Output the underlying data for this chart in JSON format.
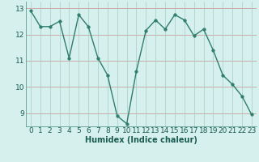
{
  "x": [
    0,
    1,
    2,
    3,
    4,
    5,
    6,
    7,
    8,
    9,
    10,
    11,
    12,
    13,
    14,
    15,
    16,
    17,
    18,
    19,
    20,
    21,
    22,
    23
  ],
  "y": [
    12.9,
    12.3,
    12.3,
    12.5,
    11.1,
    12.75,
    12.3,
    11.1,
    10.45,
    8.9,
    8.6,
    10.6,
    12.15,
    12.55,
    12.2,
    12.75,
    12.55,
    11.95,
    12.2,
    11.4,
    10.45,
    10.1,
    9.65,
    8.95
  ],
  "line_color": "#2e7d6e",
  "marker_color": "#2e7d6e",
  "bg_color": "#d6f0ee",
  "grid_color_h": "#c8a0a0",
  "grid_color_v": "#a8ccc8",
  "xlabel": "Humidex (Indice chaleur)",
  "xlim": [
    -0.5,
    23.5
  ],
  "ylim": [
    8.5,
    13.25
  ],
  "yticks": [
    9,
    10,
    11,
    12,
    13
  ],
  "xticks": [
    0,
    1,
    2,
    3,
    4,
    5,
    6,
    7,
    8,
    9,
    10,
    11,
    12,
    13,
    14,
    15,
    16,
    17,
    18,
    19,
    20,
    21,
    22,
    23
  ],
  "xlabel_fontsize": 7,
  "tick_fontsize": 6.5,
  "line_width": 1.0,
  "marker_size": 2.5
}
